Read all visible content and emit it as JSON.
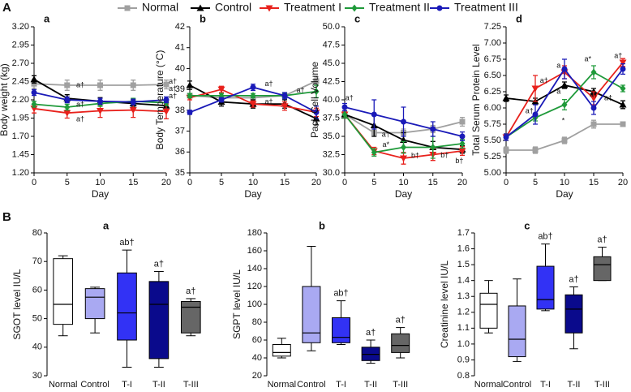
{
  "panel_labels": [
    "A",
    "B"
  ],
  "legend": [
    {
      "name": "Normal",
      "color": "#a0a0a0",
      "marker": "square"
    },
    {
      "name": "Control",
      "color": "#000000",
      "marker": "triangle-up"
    },
    {
      "name": "Treatment I",
      "color": "#e8211c",
      "marker": "triangle-down"
    },
    {
      "name": "Treatment II",
      "color": "#1f9a3a",
      "marker": "diamond"
    },
    {
      "name": "Treatment III",
      "color": "#1a1ab8",
      "marker": "circle"
    }
  ],
  "chart_data": [
    {
      "type": "line",
      "label": "a",
      "ylabel": "Body weight (kg)",
      "xlabel": "Day",
      "x": [
        0,
        5,
        10,
        15,
        20
      ],
      "xlim": [
        0,
        20
      ],
      "xticks": [
        0,
        5,
        10,
        15,
        20
      ],
      "ylim": [
        1.2,
        3.2
      ],
      "yticks": [
        {
          "value": 1.2,
          "label": "1.20"
        },
        {
          "value": 1.45,
          "label": "1.45"
        },
        {
          "value": 1.7,
          "label": "1.70"
        },
        {
          "value": 1.95,
          "label": "1.95"
        },
        {
          "value": 2.2,
          "label": "2.20"
        },
        {
          "value": 2.45,
          "label": "2.45"
        },
        {
          "value": 2.7,
          "label": "2.70"
        },
        {
          "value": 2.95,
          "label": "2.95"
        },
        {
          "value": 3.2,
          "label": "3.20"
        }
      ],
      "series": [
        {
          "values": [
            2.42,
            2.4,
            2.4,
            2.4,
            2.41
          ],
          "errors": [
            0.06,
            0.07,
            0.07,
            0.07,
            0.06
          ]
        },
        {
          "values": [
            2.48,
            2.22,
            2.18,
            2.15,
            2.12
          ],
          "errors": [
            0.05,
            0.05,
            0.05,
            0.05,
            0.05
          ]
        },
        {
          "values": [
            2.08,
            2.02,
            2.05,
            2.06,
            2.04
          ],
          "errors": [
            0.06,
            0.07,
            0.09,
            0.1,
            0.1
          ]
        },
        {
          "values": [
            2.14,
            2.1,
            2.15,
            2.18,
            2.16
          ],
          "errors": [
            0.04,
            0.04,
            0.04,
            0.04,
            0.04
          ]
        },
        {
          "values": [
            2.3,
            2.2,
            2.18,
            2.17,
            2.2
          ],
          "errors": [
            0.04,
            0.04,
            0.04,
            0.04,
            0.04
          ]
        }
      ],
      "annotations": [
        {
          "text": "a†",
          "x": 7,
          "y": 2.4
        },
        {
          "text": "a†",
          "x": 7,
          "y": 2.13
        },
        {
          "text": "a†",
          "x": 7,
          "y": 1.93
        },
        {
          "text": "a†",
          "x": 21,
          "y": 2.45
        },
        {
          "text": "a†",
          "x": 21,
          "y": 2.35
        },
        {
          "text": "a†",
          "x": 21,
          "y": 2.25
        }
      ]
    },
    {
      "type": "line",
      "label": "b",
      "ylabel": "Body Temperature (°C)",
      "xlabel": "Day",
      "x": [
        0,
        5,
        10,
        15,
        20
      ],
      "xlim": [
        0,
        20
      ],
      "xticks": [
        0,
        5,
        10,
        15,
        20
      ],
      "ylim": [
        35,
        42
      ],
      "yticks": [
        35,
        36,
        37,
        38,
        39,
        40,
        41,
        42
      ],
      "series": [
        {
          "values": [
            38.7,
            38.6,
            38.6,
            38.7,
            39.4
          ],
          "errors": [
            0.1,
            0.1,
            0.1,
            0.1,
            0.2
          ]
        },
        {
          "values": [
            39.2,
            38.4,
            38.3,
            38.3,
            37.6
          ],
          "errors": [
            0.2,
            0.2,
            0.2,
            0.2,
            0.3
          ]
        },
        {
          "values": [
            38.6,
            39.0,
            38.3,
            38.2,
            37.9
          ],
          "errors": [
            0.1,
            0.15,
            0.15,
            0.2,
            0.2
          ]
        },
        {
          "values": [
            38.7,
            38.7,
            38.7,
            38.7,
            38.9
          ],
          "errors": [
            0.1,
            0.1,
            0.1,
            0.1,
            0.3
          ]
        },
        {
          "values": [
            37.9,
            38.5,
            39.1,
            38.7,
            37.9
          ],
          "errors": [
            0.1,
            0.1,
            0.15,
            0.15,
            0.3
          ]
        }
      ],
      "annotations": [
        {
          "text": "a†",
          "x": 12.5,
          "y": 39.25
        },
        {
          "text": "a†",
          "x": 17.5,
          "y": 38.95
        },
        {
          "text": "a†",
          "x": 12.5,
          "y": 38.4
        }
      ]
    },
    {
      "type": "line",
      "label": "c",
      "ylabel": "Pack Cell Volume",
      "xlabel": "Day",
      "x": [
        0,
        5,
        10,
        15,
        20
      ],
      "xlim": [
        0,
        20
      ],
      "xticks": [
        0,
        5,
        10,
        15,
        20
      ],
      "ylim": [
        30,
        50
      ],
      "yticks": [
        {
          "value": 30,
          "label": "30.0"
        },
        32.5,
        {
          "value": 35,
          "label": "35.0"
        },
        37.5,
        {
          "value": 40,
          "label": "40.0"
        },
        42.5,
        {
          "value": 45,
          "label": "45.0"
        },
        47.5,
        {
          "value": 50,
          "label": "50.0"
        }
      ],
      "series": [
        {
          "values": [
            38.0,
            35.5,
            35.5,
            36.0,
            37.0
          ],
          "errors": [
            0.5,
            0.5,
            0.5,
            0.5,
            0.6
          ]
        },
        {
          "values": [
            38.0,
            36.5,
            34.5,
            33.5,
            33.2
          ],
          "errors": [
            0.5,
            1.5,
            1.0,
            0.8,
            0.5
          ]
        },
        {
          "values": [
            38.0,
            33.0,
            32.0,
            32.5,
            33.0
          ],
          "errors": [
            0.5,
            0.5,
            0.8,
            0.8,
            0.6
          ]
        },
        {
          "values": [
            38.0,
            32.8,
            33.5,
            33.5,
            34.0
          ],
          "errors": [
            0.5,
            0.5,
            0.8,
            1.5,
            0.6
          ]
        },
        {
          "values": [
            39.0,
            38.0,
            37.0,
            36.0,
            35.0
          ],
          "errors": [
            0.5,
            2.0,
            2.0,
            1.0,
            0.6
          ]
        }
      ],
      "annotations": [
        {
          "text": "a†",
          "x": 0.8,
          "y": 40.2
        },
        {
          "text": "a†",
          "x": 7,
          "y": 35.2
        },
        {
          "text": "a*",
          "x": 7,
          "y": 33.8
        },
        {
          "text": "b†",
          "x": 12,
          "y": 32.3
        },
        {
          "text": "b†",
          "x": 17,
          "y": 32.4
        },
        {
          "text": "b†",
          "x": 19.5,
          "y": 31.6
        }
      ]
    },
    {
      "type": "line",
      "label": "d",
      "ylabel": "Total Serum Protein Level",
      "xlabel": "Day",
      "x": [
        0,
        5,
        10,
        15,
        20
      ],
      "xlim": [
        0,
        20
      ],
      "xticks": [
        0,
        5,
        10,
        15,
        20
      ],
      "ylim": [
        5.0,
        7.25
      ],
      "yticks": [
        {
          "value": 5,
          "label": "5.00"
        },
        5.25,
        {
          "value": 5.5,
          "label": "5.50"
        },
        5.75,
        {
          "value": 6,
          "label": "6.00"
        },
        6.25,
        {
          "value": 6.5,
          "label": "6.50"
        },
        6.75,
        {
          "value": 7,
          "label": "7.00"
        },
        7.25
      ],
      "series": [
        {
          "values": [
            5.35,
            5.35,
            5.5,
            5.75,
            5.75
          ],
          "errors": [
            0.05,
            0.05,
            0.05,
            0.06,
            0.03
          ]
        },
        {
          "values": [
            6.15,
            6.1,
            6.35,
            6.25,
            6.05
          ],
          "errors": [
            0.05,
            0.05,
            0.05,
            0.05,
            0.06
          ]
        },
        {
          "values": [
            5.55,
            6.3,
            6.55,
            6.15,
            6.7
          ],
          "errors": [
            0.05,
            0.2,
            0.1,
            0.1,
            0.06
          ]
        },
        {
          "values": [
            5.55,
            5.85,
            6.05,
            6.55,
            6.3
          ],
          "errors": [
            0.05,
            0.05,
            0.08,
            0.1,
            0.05
          ]
        },
        {
          "values": [
            5.55,
            5.9,
            6.6,
            6.0,
            6.6
          ],
          "errors": [
            0.05,
            0.15,
            0.15,
            0.1,
            0.08
          ]
        }
      ],
      "annotations": [
        {
          "text": "a†",
          "x": 6.5,
          "y": 6.42
        },
        {
          "text": "a†",
          "x": 4,
          "y": 5.95
        },
        {
          "text": "a",
          "x": 9,
          "y": 6.65
        },
        {
          "text": "a",
          "x": 9,
          "y": 6.25
        },
        {
          "text": "*",
          "x": 9.8,
          "y": 5.8
        },
        {
          "text": "a*",
          "x": 14,
          "y": 6.75
        },
        {
          "text": "a†",
          "x": 15,
          "y": 6.2
        },
        {
          "text": "a†",
          "x": 19.2,
          "y": 6.8
        },
        {
          "text": "a†",
          "x": 17.5,
          "y": 6.15
        }
      ]
    },
    {
      "type": "box",
      "label": "a",
      "ylabel": "SGOT  level IU/L",
      "categories": [
        "Normal",
        "Control",
        "T-I",
        "T-II",
        "T-III"
      ],
      "ylim": [
        30,
        80
      ],
      "yticks": [
        30,
        40,
        50,
        60,
        70,
        80
      ],
      "boxes": [
        {
          "min": 44,
          "q1": 48,
          "median": 55,
          "q3": 71,
          "max": 72,
          "color": "#ffffff"
        },
        {
          "min": 45,
          "q1": 50,
          "median": 57.5,
          "q3": 60.5,
          "max": 61,
          "color": "#a9a9f2"
        },
        {
          "min": 33,
          "q1": 42.5,
          "median": 52,
          "q3": 66,
          "max": 74,
          "color": "#3232f5"
        },
        {
          "min": 33,
          "q1": 36,
          "median": 55,
          "q3": 63,
          "max": 66.5,
          "color": "#0a0a8c"
        },
        {
          "min": 44,
          "q1": 45,
          "median": 54,
          "q3": 56,
          "max": 57,
          "color": "#666666"
        }
      ],
      "annotations": [
        null,
        null,
        "ab†",
        "a†",
        "a†"
      ]
    },
    {
      "type": "box",
      "label": "b",
      "ylabel": "SGPT  level IU/L",
      "categories": [
        "Normal",
        "Control",
        "T-I",
        "T-II",
        "T-III"
      ],
      "ylim": [
        20,
        180
      ],
      "yticks": [
        20,
        40,
        60,
        80,
        100,
        120,
        140,
        160,
        180
      ],
      "boxes": [
        {
          "min": 40,
          "q1": 42,
          "median": 46,
          "q3": 55,
          "max": 62,
          "color": "#ffffff"
        },
        {
          "min": 48,
          "q1": 57,
          "median": 68,
          "q3": 120,
          "max": 165,
          "color": "#a9a9f2"
        },
        {
          "min": 55,
          "q1": 57,
          "median": 63,
          "q3": 85,
          "max": 104,
          "color": "#3232f5"
        },
        {
          "min": 34,
          "q1": 37,
          "median": 44,
          "q3": 52,
          "max": 60,
          "color": "#0a0a8c"
        },
        {
          "min": 40,
          "q1": 46,
          "median": 54,
          "q3": 67,
          "max": 74,
          "color": "#666666"
        }
      ],
      "annotations": [
        null,
        null,
        "ab†",
        "a†",
        "a†"
      ]
    },
    {
      "type": "box",
      "label": "c",
      "ylabel": "Creatinine level IU/L",
      "categories": [
        "Normal",
        "Control",
        "T-I",
        "T-II",
        "T-III"
      ],
      "ylim": [
        0.8,
        1.7
      ],
      "yticks": [
        0.8,
        0.9,
        {
          "value": 1,
          "label": "1.0"
        },
        1.1,
        1.2,
        1.3,
        1.4,
        1.5,
        1.6,
        1.7
      ],
      "boxes": [
        {
          "min": 1.07,
          "q1": 1.1,
          "median": 1.25,
          "q3": 1.32,
          "max": 1.4,
          "color": "#ffffff"
        },
        {
          "min": 0.89,
          "q1": 0.92,
          "median": 1.03,
          "q3": 1.24,
          "max": 1.41,
          "color": "#a9a9f2"
        },
        {
          "min": 1.21,
          "q1": 1.22,
          "median": 1.28,
          "q3": 1.49,
          "max": 1.63,
          "color": "#3232f5"
        },
        {
          "min": 0.97,
          "q1": 1.07,
          "median": 1.22,
          "q3": 1.31,
          "max": 1.36,
          "color": "#0a0a8c"
        },
        {
          "min": 1.4,
          "q1": 1.4,
          "median": 1.5,
          "q3": 1.55,
          "max": 1.61,
          "color": "#666666"
        }
      ],
      "annotations": [
        null,
        null,
        "ab†",
        "a†",
        "a†"
      ]
    }
  ]
}
